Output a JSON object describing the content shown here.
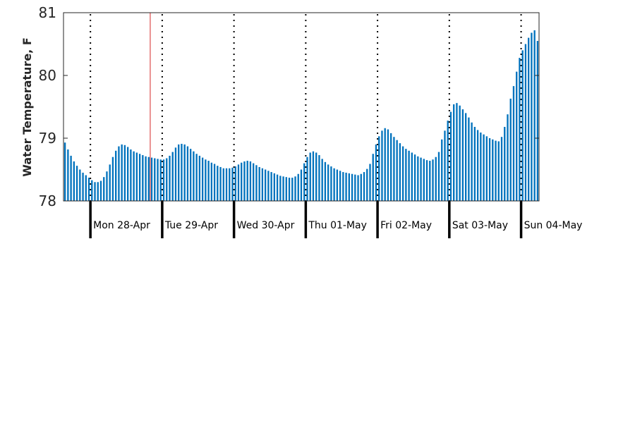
{
  "chart_data": {
    "type": "bar",
    "ylabel": "Water Temperature, F",
    "ylim": [
      78,
      81
    ],
    "yticks": [
      "78",
      "79",
      "80",
      "81"
    ],
    "grid": false,
    "day_labels": [
      "Mon 28-Apr",
      "Tue 29-Apr",
      "Wed 30-Apr",
      "Thu 01-May",
      "Fri 02-May",
      "Sat 03-May",
      "Sun 04-May"
    ],
    "x_start_hour_offset": -9,
    "bar_interval_hours": 1,
    "marker_hour": 20,
    "colors": {
      "bar": "#0072bd",
      "marker": "#d62728",
      "divider": "#000000"
    },
    "values": [
      78.93,
      78.82,
      78.72,
      78.63,
      78.56,
      78.5,
      78.45,
      78.41,
      78.37,
      78.33,
      78.3,
      78.3,
      78.32,
      78.38,
      78.47,
      78.58,
      78.7,
      78.8,
      78.87,
      78.9,
      78.89,
      78.86,
      78.82,
      78.79,
      78.77,
      78.75,
      78.73,
      78.71,
      78.7,
      78.69,
      78.68,
      78.67,
      78.66,
      78.66,
      78.68,
      78.72,
      78.78,
      78.85,
      78.9,
      78.91,
      78.9,
      78.87,
      78.83,
      78.79,
      78.75,
      78.72,
      78.69,
      78.66,
      78.64,
      78.61,
      78.59,
      78.56,
      78.54,
      78.52,
      78.52,
      78.52,
      78.53,
      78.55,
      78.58,
      78.61,
      78.63,
      78.64,
      78.63,
      78.6,
      78.57,
      78.54,
      78.52,
      78.5,
      78.48,
      78.46,
      78.44,
      78.42,
      78.4,
      78.39,
      78.38,
      78.37,
      78.37,
      78.39,
      78.43,
      78.5,
      78.6,
      78.7,
      78.77,
      78.79,
      78.77,
      78.73,
      78.67,
      78.62,
      78.58,
      78.55,
      78.52,
      78.5,
      78.48,
      78.46,
      78.45,
      78.44,
      78.43,
      78.42,
      78.41,
      78.43,
      78.46,
      78.51,
      78.59,
      78.75,
      78.9,
      79.03,
      79.12,
      79.16,
      79.14,
      79.08,
      79.02,
      78.97,
      78.92,
      78.87,
      78.83,
      78.8,
      78.77,
      78.74,
      78.71,
      78.69,
      78.67,
      78.65,
      78.64,
      78.66,
      78.7,
      78.78,
      78.98,
      79.12,
      79.28,
      79.42,
      79.54,
      79.56,
      79.52,
      79.46,
      79.4,
      79.33,
      79.25,
      79.18,
      79.13,
      79.09,
      79.06,
      79.03,
      79.0,
      78.98,
      78.96,
      78.95,
      79.02,
      79.18,
      79.38,
      79.63,
      79.83,
      80.06,
      80.28,
      80.4,
      80.5,
      80.6,
      80.68,
      80.72,
      80.55
    ]
  }
}
